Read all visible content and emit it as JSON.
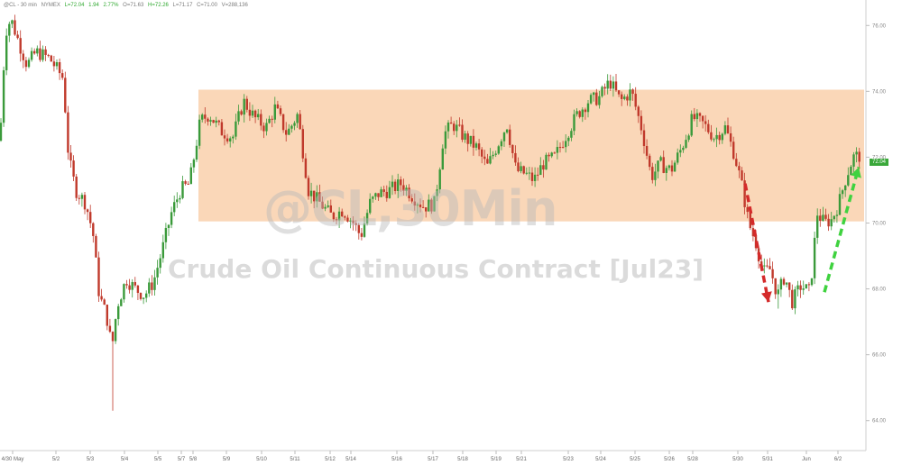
{
  "header": {
    "symbol": "@CL - 30 min",
    "exchange": "NYMEX",
    "last": "L=72.04",
    "change": "1.94",
    "change_pct": "2.77%",
    "open": "O=71.63",
    "high": "H=72.26",
    "low": "L=71.17",
    "close": "C=71.00",
    "volume": "V=288,136"
  },
  "watermark": {
    "ticker": "@CL,30Min",
    "title": "Crude Oil Continuous Contract [Jul23]"
  },
  "last_price_label": "72.04",
  "colors": {
    "up_candle": "#3a9a3a",
    "down_candle": "#c0392b",
    "band_fill": "#f9d3b0",
    "down_arrow": "#d42a2a",
    "up_arrow": "#3fd23f",
    "price_tag": "#3aa83a"
  },
  "chart_data": {
    "type": "candlestick",
    "y_axis_side": "right",
    "ylim": [
      63.5,
      76.5
    ],
    "y_ticks": [
      "76.00",
      "74.00",
      "72.00",
      "70.00",
      "68.00",
      "66.00",
      "64.00"
    ],
    "x_tick_labels": [
      "4/30 May",
      "5/2",
      "5/3",
      "5/4",
      "5/5",
      "5/7",
      "5/8",
      "5/9",
      "5/10",
      "5/11",
      "5/12",
      "5/14",
      "5/16",
      "5/17",
      "5/18",
      "5/19",
      "5/21",
      "5/23",
      "5/24",
      "5/25",
      "5/26",
      "5/28",
      "5/30",
      "5/31",
      "Jun",
      "6/2"
    ],
    "price_path": [
      {
        "t": 0,
        "p": 72.5
      },
      {
        "t": 6,
        "p": 75.8
      },
      {
        "t": 12,
        "p": 76.2
      },
      {
        "t": 22,
        "p": 75.4
      },
      {
        "t": 30,
        "p": 74.8
      },
      {
        "t": 40,
        "p": 75.2
      },
      {
        "t": 55,
        "p": 75.0
      },
      {
        "t": 70,
        "p": 74.4
      },
      {
        "t": 76,
        "p": 72.0
      },
      {
        "t": 84,
        "p": 71.0
      },
      {
        "t": 95,
        "p": 70.6
      },
      {
        "t": 103,
        "p": 69.7
      },
      {
        "t": 110,
        "p": 67.8
      },
      {
        "t": 118,
        "p": 67.2
      },
      {
        "t": 124,
        "p": 66.2
      },
      {
        "t": 130,
        "p": 67.5
      },
      {
        "t": 140,
        "p": 68.3
      },
      {
        "t": 150,
        "p": 68.0
      },
      {
        "t": 160,
        "p": 67.8
      },
      {
        "t": 170,
        "p": 68.2
      },
      {
        "t": 180,
        "p": 69.2
      },
      {
        "t": 190,
        "p": 70.3
      },
      {
        "t": 200,
        "p": 71.0
      },
      {
        "t": 210,
        "p": 71.2
      },
      {
        "t": 222,
        "p": 73.1
      },
      {
        "t": 232,
        "p": 73.3
      },
      {
        "t": 245,
        "p": 72.8
      },
      {
        "t": 258,
        "p": 72.6
      },
      {
        "t": 270,
        "p": 73.7
      },
      {
        "t": 282,
        "p": 73.2
      },
      {
        "t": 295,
        "p": 72.9
      },
      {
        "t": 305,
        "p": 73.5
      },
      {
        "t": 318,
        "p": 72.7
      },
      {
        "t": 330,
        "p": 73.3
      },
      {
        "t": 342,
        "p": 71.0
      },
      {
        "t": 355,
        "p": 70.6
      },
      {
        "t": 368,
        "p": 70.2
      },
      {
        "t": 380,
        "p": 70.4
      },
      {
        "t": 392,
        "p": 70.0
      },
      {
        "t": 400,
        "p": 69.6
      },
      {
        "t": 410,
        "p": 70.6
      },
      {
        "t": 420,
        "p": 70.9
      },
      {
        "t": 432,
        "p": 71.0
      },
      {
        "t": 445,
        "p": 71.2
      },
      {
        "t": 458,
        "p": 70.8
      },
      {
        "t": 470,
        "p": 70.5
      },
      {
        "t": 482,
        "p": 70.6
      },
      {
        "t": 492,
        "p": 72.7
      },
      {
        "t": 502,
        "p": 73.0
      },
      {
        "t": 515,
        "p": 72.6
      },
      {
        "t": 528,
        "p": 72.3
      },
      {
        "t": 540,
        "p": 71.7
      },
      {
        "t": 552,
        "p": 72.4
      },
      {
        "t": 562,
        "p": 73.0
      },
      {
        "t": 572,
        "p": 71.6
      },
      {
        "t": 582,
        "p": 71.5
      },
      {
        "t": 592,
        "p": 71.3
      },
      {
        "t": 602,
        "p": 71.8
      },
      {
        "t": 615,
        "p": 72.0
      },
      {
        "t": 628,
        "p": 72.7
      },
      {
        "t": 640,
        "p": 73.3
      },
      {
        "t": 652,
        "p": 73.7
      },
      {
        "t": 664,
        "p": 73.8
      },
      {
        "t": 676,
        "p": 74.3
      },
      {
        "t": 688,
        "p": 73.7
      },
      {
        "t": 700,
        "p": 74.0
      },
      {
        "t": 712,
        "p": 72.8
      },
      {
        "t": 722,
        "p": 71.4
      },
      {
        "t": 732,
        "p": 71.8
      },
      {
        "t": 744,
        "p": 71.6
      },
      {
        "t": 756,
        "p": 72.3
      },
      {
        "t": 768,
        "p": 73.2
      },
      {
        "t": 780,
        "p": 73.0
      },
      {
        "t": 792,
        "p": 72.6
      },
      {
        "t": 804,
        "p": 72.9
      },
      {
        "t": 814,
        "p": 72.1
      },
      {
        "t": 822,
        "p": 71.2
      },
      {
        "t": 830,
        "p": 70.0
      },
      {
        "t": 838,
        "p": 69.4
      },
      {
        "t": 846,
        "p": 68.5
      },
      {
        "t": 854,
        "p": 68.6
      },
      {
        "t": 862,
        "p": 67.8
      },
      {
        "t": 870,
        "p": 68.4
      },
      {
        "t": 878,
        "p": 67.6
      },
      {
        "t": 888,
        "p": 68.1
      },
      {
        "t": 898,
        "p": 67.9
      },
      {
        "t": 906,
        "p": 70.3
      },
      {
        "t": 914,
        "p": 70.0
      },
      {
        "t": 922,
        "p": 70.1
      },
      {
        "t": 930,
        "p": 70.6
      },
      {
        "t": 938,
        "p": 71.4
      },
      {
        "t": 946,
        "p": 72.0
      },
      {
        "t": 952,
        "p": 72.04
      }
    ],
    "wick_extremes": [
      {
        "t": 125,
        "low": 64.3
      },
      {
        "t": 863,
        "low": 67.4
      }
    ],
    "shaded_band": {
      "from": 70.05,
      "to": 74.05
    },
    "annotations": [
      {
        "type": "dashed-arrow",
        "direction": "down",
        "from": {
          "t": 826,
          "p": 71.2
        },
        "to": {
          "t": 852,
          "p": 67.6
        }
      },
      {
        "type": "dashed-arrow",
        "direction": "up",
        "from": {
          "t": 914,
          "p": 67.9
        },
        "to": {
          "t": 952,
          "p": 71.7
        }
      }
    ]
  }
}
